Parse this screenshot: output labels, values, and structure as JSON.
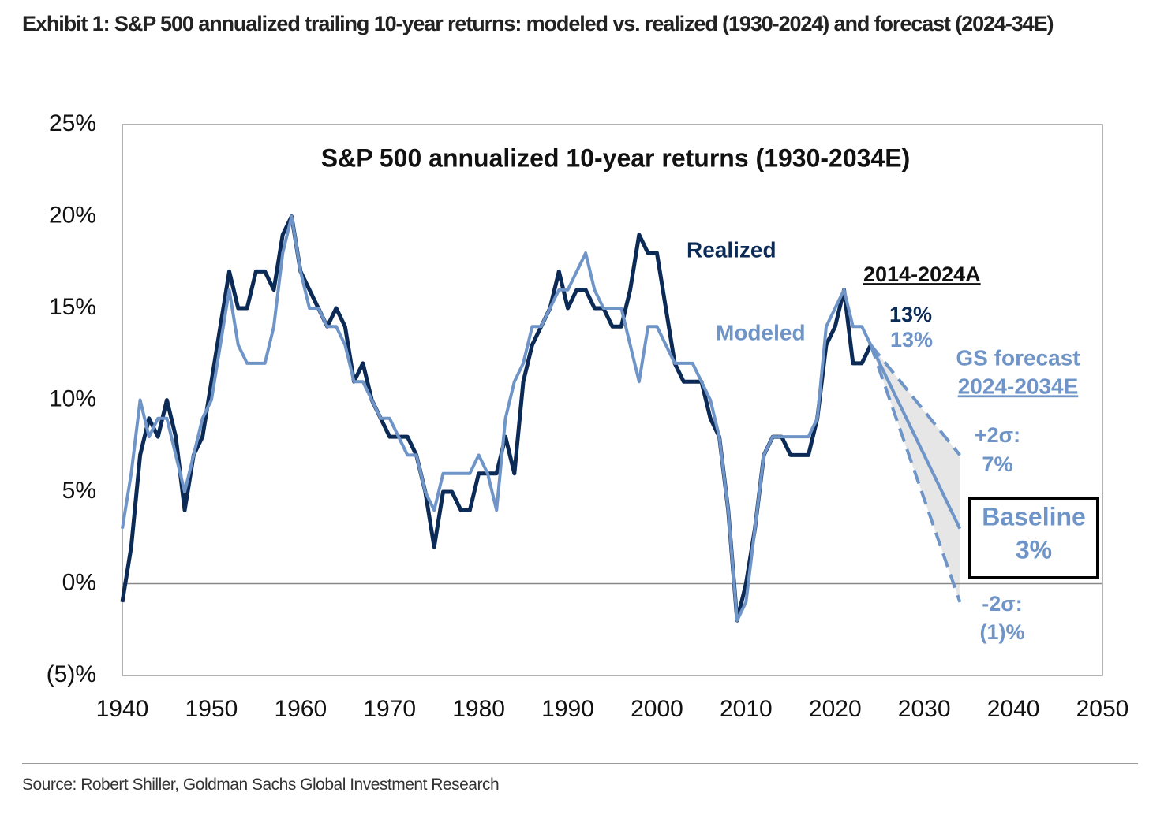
{
  "header": {
    "title": "Exhibit 1: S&P 500 annualized trailing 10-year returns: modeled vs. realized (1930-2024) and forecast (2024-34E)"
  },
  "footer": {
    "source": "Source: Robert Shiller, Goldman Sachs Global Investment Research"
  },
  "chart_data": {
    "type": "line",
    "title": "S&P 500 annualized 10-year returns (1930-2034E)",
    "x": [
      1940,
      1941,
      1942,
      1943,
      1944,
      1945,
      1946,
      1947,
      1948,
      1949,
      1950,
      1951,
      1952,
      1953,
      1954,
      1955,
      1956,
      1957,
      1958,
      1959,
      1960,
      1961,
      1962,
      1963,
      1964,
      1965,
      1966,
      1967,
      1968,
      1969,
      1970,
      1971,
      1972,
      1973,
      1974,
      1975,
      1976,
      1977,
      1978,
      1979,
      1980,
      1981,
      1982,
      1983,
      1984,
      1985,
      1986,
      1987,
      1988,
      1989,
      1990,
      1991,
      1992,
      1993,
      1994,
      1995,
      1996,
      1997,
      1998,
      1999,
      2000,
      2001,
      2002,
      2003,
      2004,
      2005,
      2006,
      2007,
      2008,
      2009,
      2010,
      2011,
      2012,
      2013,
      2014,
      2015,
      2016,
      2017,
      2018,
      2019,
      2020,
      2021,
      2022,
      2023,
      2024
    ],
    "series": [
      {
        "name": "Realized",
        "color": "#0b2a55",
        "end_label": "13%",
        "values": [
          -1,
          2,
          7,
          9,
          8,
          10,
          8,
          4,
          7,
          8,
          11,
          14,
          17,
          15,
          15,
          17,
          17,
          16,
          19,
          20,
          17,
          16,
          15,
          14,
          15,
          14,
          11,
          12,
          10,
          9,
          8,
          8,
          8,
          7,
          5,
          2,
          5,
          5,
          4,
          4,
          6,
          6,
          6,
          8,
          6,
          11,
          13,
          14,
          15,
          17,
          15,
          16,
          16,
          15,
          15,
          14,
          14,
          16,
          19,
          18,
          18,
          15,
          12,
          11,
          11,
          11,
          9,
          8,
          4,
          -2,
          0,
          3,
          7,
          8,
          8,
          7,
          7,
          7,
          9,
          13,
          14,
          16,
          12,
          12,
          13
        ]
      },
      {
        "name": "Modeled",
        "color": "#6f95c8",
        "end_label": "13%",
        "values": [
          3,
          6,
          10,
          8,
          9,
          9,
          7,
          5,
          7,
          9,
          10,
          13,
          16,
          13,
          12,
          12,
          12,
          14,
          18,
          20,
          17,
          15,
          15,
          14,
          14,
          13,
          11,
          11,
          10,
          9,
          9,
          8,
          7,
          7,
          5,
          4,
          6,
          6,
          6,
          6,
          7,
          6,
          4,
          9,
          11,
          12,
          14,
          14,
          15,
          16,
          16,
          17,
          18,
          16,
          15,
          15,
          15,
          13,
          11,
          14,
          14,
          13,
          12,
          12,
          12,
          11,
          10,
          8,
          4,
          -2,
          -1,
          3,
          7,
          8,
          8,
          8,
          8,
          8,
          9,
          14,
          15,
          16,
          14,
          14,
          13
        ]
      }
    ],
    "forecast": [
      {
        "name": "+2σ:",
        "end_label": "7%",
        "color": "#6f95c8",
        "dash": true,
        "x": [
          2024,
          2034
        ],
        "values": [
          13,
          7
        ]
      },
      {
        "name": "Baseline",
        "end_label": "3%",
        "color": "#6f95c8",
        "dash": false,
        "x": [
          2024,
          2034
        ],
        "values": [
          13,
          3
        ]
      },
      {
        "name": "-2σ:",
        "end_label": "(1)%",
        "color": "#6f95c8",
        "dash": true,
        "x": [
          2024,
          2034
        ],
        "values": [
          13,
          -1
        ]
      }
    ],
    "annotations": [
      "2014-2024A",
      "GS forecast",
      "2024-2034E"
    ],
    "xlim": [
      1940,
      2050
    ],
    "xticks": [
      1940,
      1950,
      1960,
      1970,
      1980,
      1990,
      2000,
      2010,
      2020,
      2030,
      2040,
      2050
    ],
    "ylim": [
      -5,
      25
    ],
    "yticks": [
      {
        "value": -5,
        "label": "(5)%"
      },
      {
        "value": 0,
        "label": "0%"
      },
      {
        "value": 5,
        "label": "5%"
      },
      {
        "value": 10,
        "label": "10%"
      },
      {
        "value": 15,
        "label": "15%"
      },
      {
        "value": 20,
        "label": "20%"
      },
      {
        "value": 25,
        "label": "25%"
      }
    ]
  }
}
